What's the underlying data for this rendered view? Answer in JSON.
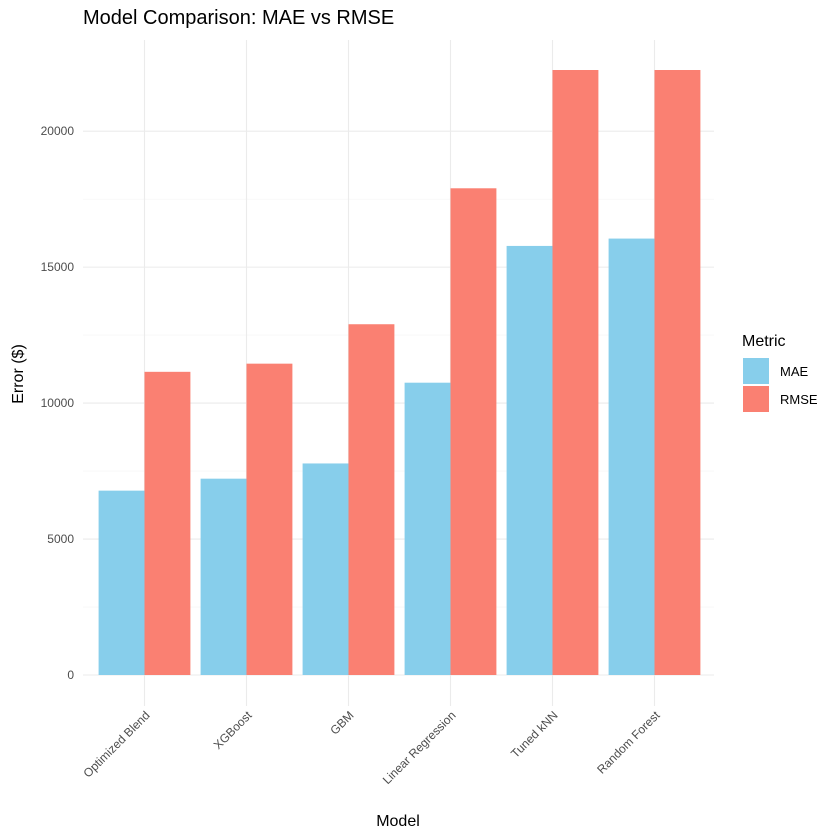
{
  "chart_data": {
    "type": "bar",
    "title": "Model Comparison: MAE vs RMSE",
    "xlabel": "Model",
    "ylabel": "Error ($)",
    "categories": [
      "Optimized Blend",
      "XGBoost",
      "GBM",
      "Linear Regression",
      "Tuned kNN",
      "Random Forest"
    ],
    "series": [
      {
        "name": "MAE",
        "color": "#87ceeb",
        "values": [
          6780,
          7220,
          7780,
          10750,
          15780,
          16050
        ]
      },
      {
        "name": "RMSE",
        "color": "#fa8072",
        "values": [
          11150,
          11450,
          12900,
          17900,
          22250,
          22250
        ]
      }
    ],
    "ylim": [
      0,
      22250
    ],
    "yticks": [
      0,
      5000,
      10000,
      15000,
      20000
    ],
    "ytick_labels": [
      "0",
      "5000",
      "10000",
      "15000",
      "20000"
    ],
    "grid": true,
    "legend": {
      "title": "Metric",
      "position": "right"
    }
  }
}
